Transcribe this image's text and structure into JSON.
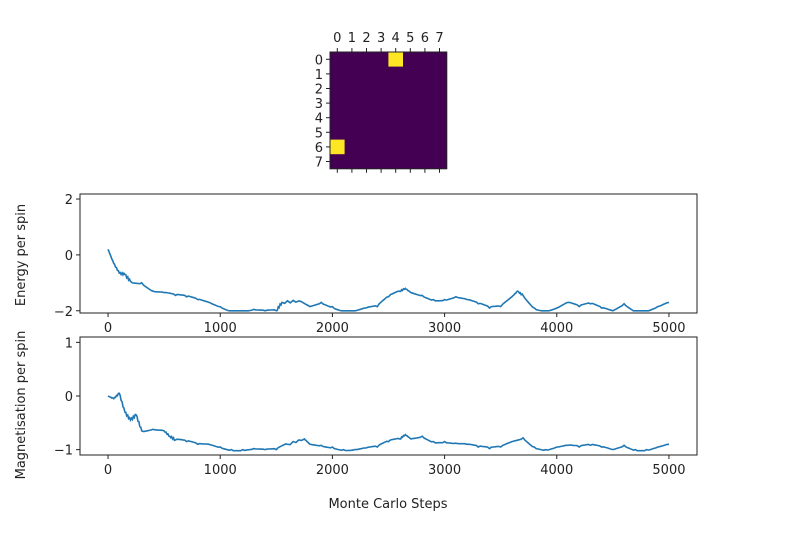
{
  "chart_data": [
    {
      "type": "heatmap",
      "rows": 8,
      "cols": 8,
      "colormap": "viridis",
      "xticks": [
        "0",
        "1",
        "2",
        "3",
        "4",
        "5",
        "6",
        "7"
      ],
      "yticks": [
        "0",
        "1",
        "2",
        "3",
        "4",
        "5",
        "6",
        "7"
      ],
      "highlighted_cells": [
        [
          0,
          4
        ],
        [
          6,
          0
        ]
      ],
      "colors": {
        "low": "#440154",
        "high": "#fde725"
      }
    },
    {
      "type": "line",
      "ylabel": "Energy per spin",
      "xlim": [
        -250,
        5250
      ],
      "ylim": [
        -2.08,
        2.18
      ],
      "xticks": [
        0,
        1000,
        2000,
        3000,
        4000,
        5000
      ],
      "yticks": [
        -2,
        0,
        2
      ],
      "color": "#1f77b4",
      "x": [
        0,
        50,
        100,
        150,
        200,
        300,
        400,
        500,
        600,
        700,
        800,
        900,
        1000,
        1100,
        1200,
        1300,
        1400,
        1500,
        1550,
        1700,
        1800,
        1900,
        2000,
        2100,
        2200,
        2300,
        2400,
        2500,
        2600,
        2650,
        2700,
        2800,
        2900,
        3000,
        3100,
        3200,
        3300,
        3400,
        3500,
        3600,
        3650,
        3700,
        3800,
        3900,
        4000,
        4100,
        4200,
        4300,
        4400,
        4500,
        4600,
        4700,
        4800,
        4900,
        5000
      ],
      "y": [
        0.2,
        -0.3,
        -0.65,
        -0.7,
        -0.95,
        -1.0,
        -1.3,
        -1.35,
        -1.45,
        -1.5,
        -1.6,
        -1.7,
        -1.85,
        -2,
        -2,
        -1.95,
        -2,
        -2,
        -1.7,
        -1.65,
        -1.85,
        -1.7,
        -1.85,
        -2,
        -2,
        -1.9,
        -1.85,
        -1.5,
        -1.3,
        -1.2,
        -1.35,
        -1.45,
        -1.6,
        -1.6,
        -1.5,
        -1.6,
        -1.75,
        -1.9,
        -1.85,
        -1.5,
        -1.3,
        -1.45,
        -1.9,
        -2,
        -1.9,
        -1.7,
        -1.85,
        -1.75,
        -1.9,
        -2,
        -1.75,
        -2,
        -2,
        -1.85,
        -1.7
      ]
    },
    {
      "type": "line",
      "ylabel": "Magnetisation per spin",
      "xlabel": "Monte Carlo Steps",
      "xlim": [
        -250,
        5250
      ],
      "ylim": [
        -1.1,
        1.1
      ],
      "xticks": [
        0,
        1000,
        2000,
        3000,
        4000,
        5000
      ],
      "yticks": [
        -1,
        0,
        1
      ],
      "color": "#1f77b4",
      "x": [
        0,
        50,
        100,
        150,
        200,
        250,
        300,
        400,
        500,
        550,
        600,
        700,
        800,
        900,
        1000,
        1100,
        1200,
        1300,
        1400,
        1500,
        1600,
        1750,
        1800,
        1900,
        2000,
        2100,
        2200,
        2300,
        2400,
        2500,
        2600,
        2650,
        2700,
        2800,
        2900,
        3000,
        3100,
        3200,
        3300,
        3400,
        3500,
        3600,
        3700,
        3800,
        3900,
        4000,
        4100,
        4200,
        4300,
        4400,
        4500,
        4600,
        4700,
        4800,
        4900,
        5000
      ],
      "y": [
        0,
        -0.05,
        0.05,
        -0.3,
        -0.45,
        -0.35,
        -0.65,
        -0.62,
        -0.65,
        -0.75,
        -0.82,
        -0.85,
        -0.9,
        -0.9,
        -0.95,
        -1,
        -1,
        -0.98,
        -1,
        -1,
        -0.9,
        -0.8,
        -0.9,
        -0.92,
        -0.95,
        -1,
        -1,
        -0.97,
        -0.95,
        -0.85,
        -0.8,
        -0.72,
        -0.8,
        -0.75,
        -0.85,
        -0.85,
        -0.88,
        -0.9,
        -0.95,
        -0.98,
        -0.95,
        -0.85,
        -0.78,
        -0.95,
        -1,
        -0.95,
        -0.92,
        -0.95,
        -0.92,
        -0.95,
        -1,
        -0.92,
        -1,
        -1,
        -0.95,
        -0.9
      ]
    }
  ]
}
